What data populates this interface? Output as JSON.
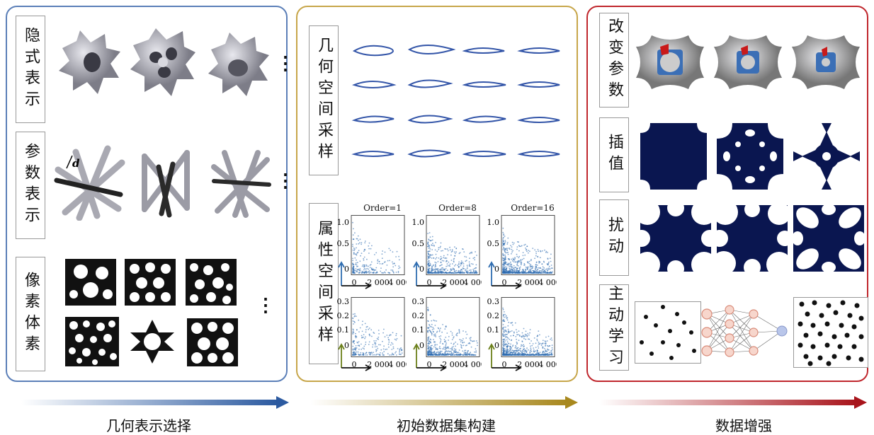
{
  "panels": {
    "geometry": {
      "caption": "几何表示选择",
      "rows": [
        "隐式表示",
        "参数表示",
        "像素体素"
      ],
      "dim_label": "d"
    },
    "dataset": {
      "caption": "初始数据集构建",
      "rows": [
        "几何空间采样",
        "属性空间采样"
      ],
      "plot_titles": [
        "Order=1",
        "Order=8",
        "Order=16"
      ],
      "top_yticks": [
        "1.0",
        "0.5",
        "0"
      ],
      "bottom_yticks": [
        "0.3",
        "0.2",
        "0.1",
        "0"
      ],
      "xticks": [
        "0",
        "2 000",
        "4 000"
      ]
    },
    "augmentation": {
      "caption": "数据增强",
      "rows": [
        "改变参数",
        "插值",
        "扰动",
        "主动学习"
      ]
    }
  },
  "colors": {
    "blue_panel": "#5b7fb8",
    "gold_panel": "#c7a64a",
    "red_panel": "#c0272d",
    "navy": "#0a1650",
    "scatter": "#2f6db0"
  }
}
